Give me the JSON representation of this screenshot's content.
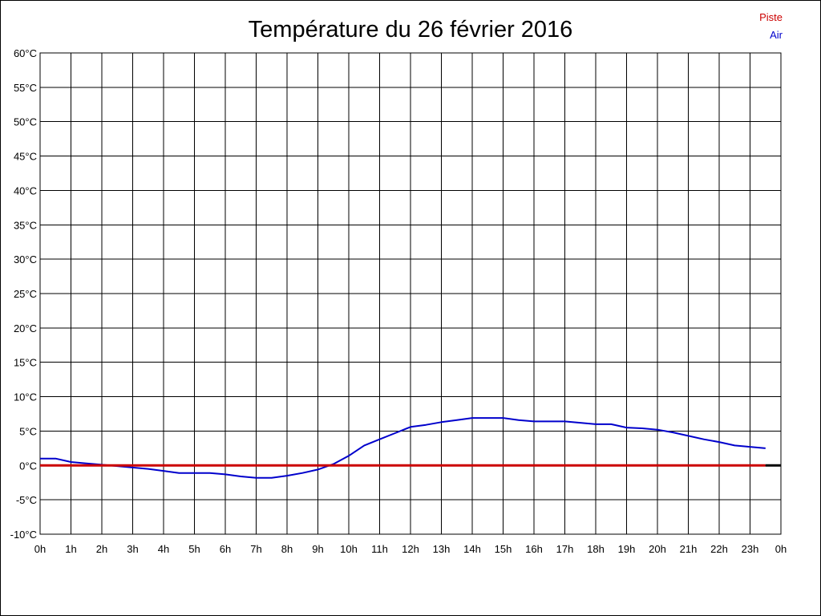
{
  "chart_data": {
    "type": "line",
    "title": "Température du 26 février 2016",
    "x_tick_labels": [
      "0h",
      "1h",
      "2h",
      "3h",
      "4h",
      "5h",
      "6h",
      "7h",
      "8h",
      "9h",
      "10h",
      "11h",
      "12h",
      "13h",
      "14h",
      "15h",
      "16h",
      "17h",
      "18h",
      "19h",
      "20h",
      "21h",
      "22h",
      "23h",
      "0h"
    ],
    "y_tick_labels": [
      "60°C",
      "55°C",
      "50°C",
      "45°C",
      "40°C",
      "35°C",
      "30°C",
      "25°C",
      "20°C",
      "15°C",
      "10°C",
      "5°C",
      "0°C",
      "-5°C",
      "-10°C"
    ],
    "y_tick_values": [
      60,
      55,
      50,
      45,
      40,
      35,
      30,
      25,
      20,
      15,
      10,
      5,
      0,
      -5,
      -10
    ],
    "xlim": [
      0,
      24
    ],
    "ylim": [
      -10,
      60
    ],
    "grid": true,
    "legend_position": "top-right",
    "series": [
      {
        "name": "Piste",
        "color": "#cc0000",
        "x": [
          0,
          23.5
        ],
        "values": [
          0,
          0
        ]
      },
      {
        "name": "Air",
        "color": "#0000cc",
        "x": [
          0,
          0.5,
          1,
          1.5,
          2,
          2.5,
          3,
          3.5,
          4,
          4.5,
          5,
          5.5,
          6,
          6.5,
          7,
          7.5,
          8,
          8.5,
          9,
          9.5,
          10,
          10.5,
          11,
          11.5,
          12,
          12.5,
          13,
          13.5,
          14,
          14.5,
          15,
          15.5,
          16,
          16.5,
          17,
          17.5,
          18,
          18.5,
          19,
          19.5,
          20,
          20.5,
          21,
          21.5,
          22,
          22.5,
          23,
          23.5
        ],
        "values": [
          1,
          1,
          0.5,
          0.3,
          0.1,
          -0.1,
          -0.3,
          -0.5,
          -0.8,
          -1.1,
          -1.1,
          -1.1,
          -1.3,
          -1.6,
          -1.8,
          -1.8,
          -1.5,
          -1.1,
          -0.6,
          0.2,
          1.4,
          2.9,
          3.8,
          4.7,
          5.6,
          5.9,
          6.3,
          6.6,
          6.9,
          6.9,
          6.9,
          6.6,
          6.4,
          6.4,
          6.4,
          6.2,
          6,
          6,
          5.5,
          5.4,
          5.2,
          4.8,
          4.3,
          3.8,
          3.4,
          2.9,
          2.7,
          2.5
        ]
      }
    ]
  }
}
